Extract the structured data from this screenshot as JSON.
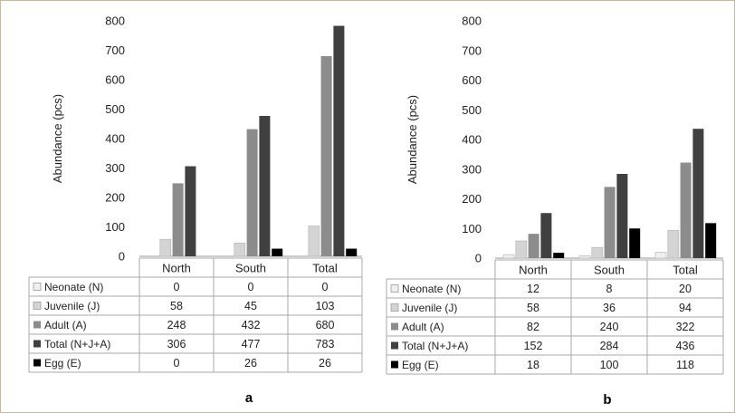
{
  "chart_data": [
    {
      "type": "bar",
      "panel_label": "a",
      "ylabel": "Abundance (pcs)",
      "ylim": [
        0,
        800
      ],
      "yticks": [
        0,
        100,
        200,
        300,
        400,
        500,
        600,
        700,
        800
      ],
      "categories": [
        "North",
        "South",
        "Total"
      ],
      "series": [
        {
          "name": "Neonate (N)",
          "values": [
            0,
            0,
            0
          ]
        },
        {
          "name": "Juvenile (J)",
          "values": [
            58,
            45,
            103
          ]
        },
        {
          "name": "Adult (A)",
          "values": [
            248,
            432,
            680
          ]
        },
        {
          "name": "Total (N+J+A)",
          "values": [
            306,
            477,
            783
          ]
        },
        {
          "name": "Egg (E)",
          "values": [
            0,
            26,
            26
          ]
        }
      ]
    },
    {
      "type": "bar",
      "panel_label": "b",
      "ylabel": "Abundance (pcs)",
      "ylim": [
        0,
        800
      ],
      "yticks": [
        0,
        100,
        200,
        300,
        400,
        500,
        600,
        700,
        800
      ],
      "categories": [
        "North",
        "South",
        "Total"
      ],
      "series": [
        {
          "name": "Neonate (N)",
          "values": [
            12,
            8,
            20
          ]
        },
        {
          "name": "Juvenile (J)",
          "values": [
            58,
            36,
            94
          ]
        },
        {
          "name": "Adult (A)",
          "values": [
            82,
            240,
            322
          ]
        },
        {
          "name": "Total (N+J+A)",
          "values": [
            152,
            284,
            436
          ]
        },
        {
          "name": "Egg (E)",
          "values": [
            18,
            100,
            118
          ]
        }
      ]
    }
  ],
  "colors": {
    "Neonate (N)": "#efefef",
    "Juvenile (J)": "#d4d4d4",
    "Adult (A)": "#8c8c8c",
    "Total (N+J+A)": "#404040",
    "Egg (E)": "#000000"
  }
}
